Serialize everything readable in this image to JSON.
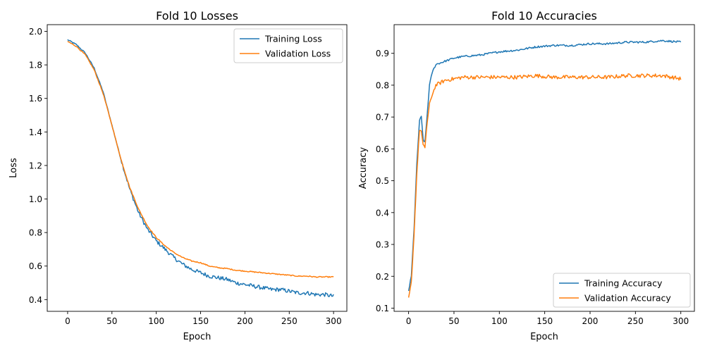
{
  "colors": {
    "training": "#1f77b4",
    "validation": "#ff7f0e"
  },
  "chart_data": [
    {
      "type": "line",
      "title": "Fold 10 Losses",
      "xlabel": "Epoch",
      "ylabel": "Loss",
      "xlim": [
        -23,
        315
      ],
      "ylim": [
        0.33,
        2.04
      ],
      "xticks": [
        0,
        50,
        100,
        150,
        200,
        250,
        300
      ],
      "yticks": [
        0.4,
        0.6,
        0.8,
        1.0,
        1.2,
        1.4,
        1.6,
        1.8,
        2.0
      ],
      "ytick_decimals": 1,
      "grid": false,
      "legend_position": "upper right",
      "series": [
        {
          "name": "Training Loss",
          "color_key": "training",
          "x": [
            0,
            10,
            20,
            30,
            40,
            50,
            60,
            70,
            80,
            90,
            100,
            110,
            120,
            130,
            140,
            150,
            160,
            170,
            180,
            190,
            200,
            210,
            220,
            230,
            240,
            250,
            260,
            270,
            280,
            290,
            300
          ],
          "y": [
            1.95,
            1.92,
            1.87,
            1.78,
            1.64,
            1.44,
            1.24,
            1.06,
            0.92,
            0.82,
            0.75,
            0.7,
            0.65,
            0.61,
            0.58,
            0.56,
            0.54,
            0.53,
            0.52,
            0.5,
            0.49,
            0.48,
            0.47,
            0.46,
            0.46,
            0.45,
            0.44,
            0.44,
            0.43,
            0.43,
            0.42
          ]
        },
        {
          "name": "Validation Loss",
          "color_key": "validation",
          "x": [
            0,
            10,
            20,
            30,
            40,
            50,
            60,
            70,
            80,
            90,
            100,
            110,
            120,
            130,
            140,
            150,
            160,
            170,
            180,
            190,
            200,
            210,
            220,
            230,
            240,
            250,
            260,
            270,
            280,
            290,
            300
          ],
          "y": [
            1.94,
            1.91,
            1.86,
            1.77,
            1.63,
            1.44,
            1.24,
            1.07,
            0.94,
            0.84,
            0.77,
            0.72,
            0.68,
            0.65,
            0.63,
            0.62,
            0.6,
            0.59,
            0.585,
            0.575,
            0.57,
            0.565,
            0.56,
            0.555,
            0.55,
            0.545,
            0.54,
            0.54,
            0.535,
            0.535,
            0.535
          ]
        }
      ]
    },
    {
      "type": "line",
      "title": "Fold 10 Accuracies",
      "xlabel": "Epoch",
      "ylabel": "Accuracy",
      "xlim": [
        -16,
        315
      ],
      "ylim": [
        0.09,
        0.99
      ],
      "xticks": [
        0,
        50,
        100,
        150,
        200,
        250,
        300
      ],
      "yticks": [
        0.1,
        0.2,
        0.3,
        0.4,
        0.5,
        0.6,
        0.7,
        0.8,
        0.9
      ],
      "ytick_decimals": 1,
      "grid": false,
      "legend_position": "lower right",
      "series": [
        {
          "name": "Training Accuracy",
          "color_key": "training",
          "x": [
            0,
            3,
            6,
            9,
            12,
            14,
            16,
            18,
            20,
            23,
            26,
            30,
            40,
            50,
            60,
            80,
            100,
            120,
            140,
            160,
            180,
            200,
            220,
            240,
            260,
            280,
            300
          ],
          "y": [
            0.155,
            0.2,
            0.35,
            0.55,
            0.69,
            0.7,
            0.63,
            0.62,
            0.69,
            0.8,
            0.84,
            0.865,
            0.875,
            0.885,
            0.89,
            0.895,
            0.905,
            0.91,
            0.92,
            0.925,
            0.925,
            0.93,
            0.93,
            0.935,
            0.935,
            0.94,
            0.935
          ]
        },
        {
          "name": "Validation Accuracy",
          "color_key": "validation",
          "x": [
            0,
            3,
            6,
            9,
            12,
            14,
            16,
            18,
            20,
            23,
            26,
            30,
            40,
            50,
            60,
            80,
            100,
            120,
            140,
            160,
            180,
            200,
            220,
            240,
            260,
            280,
            300
          ],
          "y": [
            0.13,
            0.18,
            0.33,
            0.52,
            0.66,
            0.655,
            0.61,
            0.605,
            0.67,
            0.74,
            0.77,
            0.8,
            0.815,
            0.82,
            0.825,
            0.825,
            0.825,
            0.825,
            0.83,
            0.825,
            0.825,
            0.825,
            0.825,
            0.83,
            0.83,
            0.83,
            0.82
          ]
        }
      ]
    }
  ]
}
